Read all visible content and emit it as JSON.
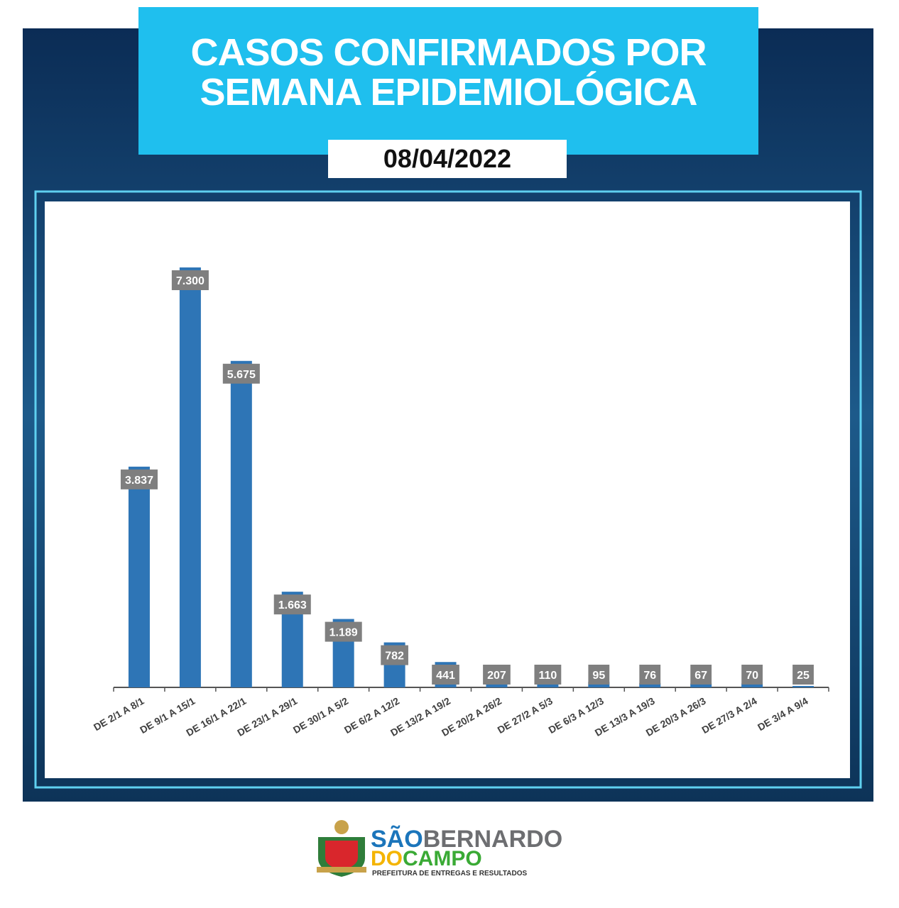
{
  "chart_data": {
    "type": "bar",
    "title": "CASOS CONFIRMADOS POR SEMANA EPIDEMIOLÓGICA",
    "subtitle": "08/04/2022",
    "categories": [
      "DE 2/1 A 8/1",
      "DE 9/1 A 15/1",
      "DE 16/1 A 22/1",
      "DE 23/1 A 29/1",
      "DE 30/1 A 5/2",
      "DE 6/2 A 12/2",
      "DE 13/2 A 19/2",
      "DE 20/2 A 26/2",
      "DE 27/2 A 5/3",
      "DE 6/3 A 12/3",
      "DE 13/3 A 19/3",
      "DE 20/3 A 26/3",
      "DE 27/3 A 2/4",
      "DE 3/4 A 9/4"
    ],
    "values": [
      3837,
      7300,
      5675,
      1663,
      1189,
      782,
      441,
      207,
      110,
      95,
      76,
      67,
      70,
      25
    ],
    "value_labels": [
      "3.837",
      "7.300",
      "5.675",
      "1.663",
      "1.189",
      "782",
      "441",
      "207",
      "110",
      "95",
      "76",
      "67",
      "70",
      "25"
    ],
    "color": "#2e75b6"
  },
  "logo": {
    "word1": "SÃO",
    "word2": "BERNARDO",
    "word3": "DO",
    "word4": "CAMPO",
    "tagline": "PREFEITURA DE ENTREGAS E RESULTADOS"
  }
}
